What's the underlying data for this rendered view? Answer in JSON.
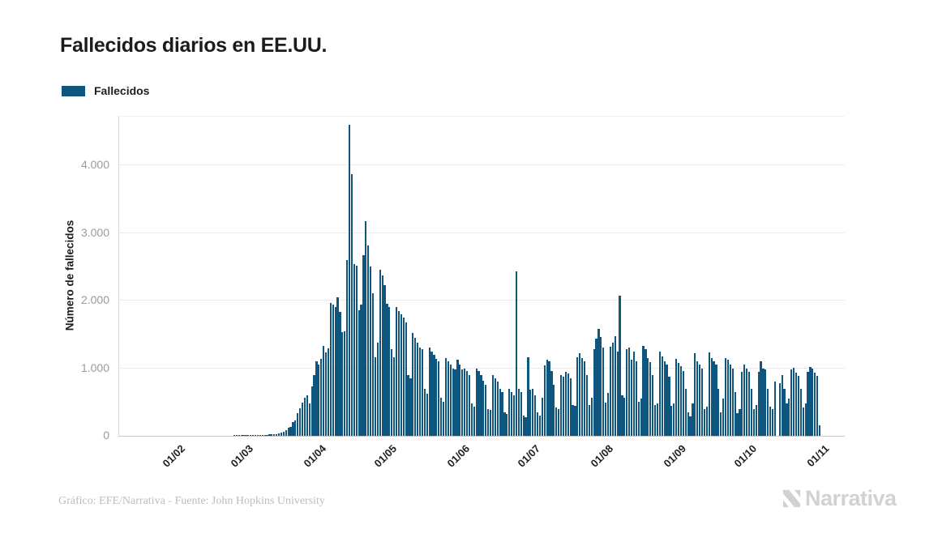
{
  "header": {
    "title": "Fallecidos diarios en EE.UU."
  },
  "legend": {
    "label": "Fallecidos",
    "color": "#0f567e"
  },
  "footer": {
    "credit": "Gráfico: EFE/Narrativa - Fuente: John Hopkins University",
    "brand": "Narrativa"
  },
  "colors": {
    "bar": "#0f567e",
    "grid": "#ececec",
    "axis": "#c7c7c7",
    "tick_text": "#9b9b9b",
    "dark_text": "#1c1c1c",
    "brand_gray": "#d2d2d2"
  },
  "chart_data": {
    "type": "bar",
    "title": "Fallecidos diarios en EE.UU.",
    "xlabel": "",
    "ylabel": "Número de fallecidos",
    "series_name": "Fallecidos",
    "legend_position": "top-left",
    "grid": true,
    "ylim": [
      0,
      4700
    ],
    "yticks": [
      {
        "value": 0,
        "label": "0"
      },
      {
        "value": 1000,
        "label": "1.000"
      },
      {
        "value": 2000,
        "label": "2.000"
      },
      {
        "value": 3000,
        "label": "3.000"
      },
      {
        "value": 4000,
        "label": "4.000"
      }
    ],
    "xticks": [
      {
        "label": "01/02",
        "index": 10
      },
      {
        "label": "01/03",
        "index": 39
      },
      {
        "label": "01/04",
        "index": 70
      },
      {
        "label": "01/05",
        "index": 100
      },
      {
        "label": "01/06",
        "index": 131
      },
      {
        "label": "01/07",
        "index": 161
      },
      {
        "label": "01/08",
        "index": 192
      },
      {
        "label": "01/09",
        "index": 223
      },
      {
        "label": "01/10",
        "index": 253
      },
      {
        "label": "01/11",
        "index": 284
      }
    ],
    "start_date": "22/01/2020",
    "end_date": "01/11/2020",
    "values": [
      0,
      0,
      0,
      0,
      0,
      0,
      0,
      0,
      0,
      0,
      0,
      0,
      0,
      0,
      0,
      0,
      0,
      0,
      0,
      0,
      0,
      0,
      0,
      0,
      0,
      0,
      0,
      0,
      0,
      0,
      0,
      0,
      0,
      0,
      0,
      1,
      1,
      1,
      5,
      1,
      4,
      3,
      6,
      5,
      6,
      8,
      9,
      11,
      14,
      17,
      22,
      25,
      30,
      24,
      38,
      51,
      66,
      90,
      116,
      130,
      200,
      230,
      330,
      410,
      490,
      560,
      600,
      480,
      730,
      900,
      1100,
      1050,
      1140,
      1330,
      1230,
      1290,
      1960,
      1940,
      1900,
      2050,
      1830,
      1530,
      1540,
      2600,
      4600,
      3870,
      2540,
      2520,
      1860,
      1940,
      2670,
      3170,
      2810,
      2500,
      2110,
      1160,
      1380,
      2450,
      2370,
      2230,
      1950,
      1900,
      1280,
      1160,
      1900,
      1850,
      1800,
      1750,
      1680,
      900,
      850,
      1520,
      1450,
      1380,
      1300,
      1280,
      700,
      620,
      1300,
      1250,
      1200,
      1140,
      1100,
      560,
      500,
      1150,
      1100,
      1050,
      1000,
      980,
      1120,
      1050,
      980,
      1000,
      960,
      900,
      480,
      430,
      1000,
      960,
      900,
      820,
      750,
      400,
      380,
      900,
      850,
      800,
      700,
      650,
      350,
      320,
      700,
      650,
      600,
      2430,
      700,
      650,
      300,
      280,
      1160,
      680,
      700,
      600,
      350,
      300,
      560,
      1040,
      1125,
      1100,
      960,
      750,
      420,
      400,
      900,
      880,
      950,
      920,
      850,
      450,
      440,
      1160,
      1220,
      1150,
      1100,
      900,
      460,
      560,
      1280,
      1440,
      1580,
      1460,
      1300,
      490,
      630,
      1320,
      1380,
      1470,
      1250,
      2070,
      600,
      560,
      1280,
      1300,
      1130,
      1240,
      1100,
      500,
      550,
      1330,
      1280,
      1150,
      1090,
      900,
      450,
      480,
      1250,
      1170,
      1100,
      1050,
      880,
      440,
      480,
      1140,
      1080,
      1030,
      960,
      700,
      350,
      290,
      480,
      1220,
      1100,
      1060,
      1000,
      400,
      430,
      1230,
      1150,
      1100,
      1050,
      700,
      350,
      550,
      1150,
      1120,
      1050,
      1000,
      650,
      340,
      400,
      950,
      1050,
      1000,
      950,
      700,
      400,
      450,
      950,
      1100,
      1000,
      980,
      700,
      430,
      400,
      800,
      0,
      780,
      900,
      700,
      480,
      550,
      980,
      1010,
      940,
      890,
      700,
      420,
      480,
      950,
      1020,
      990,
      940,
      890,
      150
    ]
  }
}
